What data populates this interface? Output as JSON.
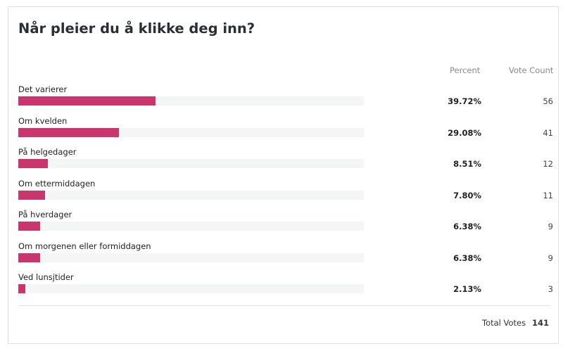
{
  "chart_data": {
    "type": "bar",
    "title": "Når pleier du å klikke deg inn?",
    "columns": {
      "percent": "Percent",
      "count": "Vote Count"
    },
    "categories": [
      "Det varierer",
      "Om kvelden",
      "På helgedager",
      "Om ettermiddagen",
      "På hverdager",
      "Om morgenen eller formiddagen",
      "Ved lunsjtider"
    ],
    "percent_labels": [
      "39.72%",
      "29.08%",
      "8.51%",
      "7.80%",
      "6.38%",
      "6.38%",
      "2.13%"
    ],
    "values": [
      39.72,
      29.08,
      8.51,
      7.8,
      6.38,
      6.38,
      2.13
    ],
    "counts": [
      56,
      41,
      12,
      11,
      9,
      9,
      3
    ],
    "xlim": [
      0,
      100
    ],
    "bar_color": "#c9356c",
    "total_label": "Total Votes",
    "total": 141
  }
}
